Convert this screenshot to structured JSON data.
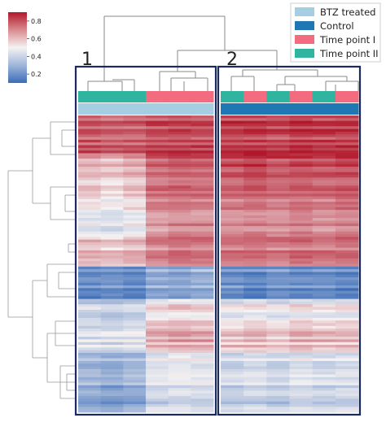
{
  "chart_data": {
    "type": "heatmap",
    "title": "",
    "colorbar": {
      "min": 0.1,
      "max": 0.9,
      "ticks": [
        "0.8",
        "0.6",
        "0.4",
        "0.2"
      ],
      "tick_values": [
        0.8,
        0.6,
        0.4,
        0.2
      ],
      "colormap": "blue-white-red",
      "low_color": "#3b6cb7",
      "mid_color": "#f5f2f2",
      "high_color": "#b2182b"
    },
    "legend": {
      "placement": "top-right",
      "entries": [
        {
          "label": "BTZ treated",
          "color": "#a6cee3"
        },
        {
          "label": "Control",
          "color": "#1f78b4"
        },
        {
          "label": "Time point I",
          "color": "#f26b7f"
        },
        {
          "label": "Time point II",
          "color": "#2fb4a0"
        }
      ]
    },
    "clusters": [
      {
        "label": "1",
        "columns": 6
      },
      {
        "label": "2",
        "columns": 6
      }
    ],
    "column_annotations": {
      "time_point": [
        "Time point II",
        "Time point II",
        "Time point II",
        "Time point I",
        "Time point I",
        "Time point I",
        "Time point II",
        "Time point I",
        "Time point II",
        "Time point I",
        "Time point II",
        "Time point I"
      ],
      "treatment": [
        "BTZ treated",
        "BTZ treated",
        "BTZ treated",
        "BTZ treated",
        "BTZ treated",
        "BTZ treated",
        "Control",
        "Control",
        "Control",
        "Control",
        "Control",
        "Control"
      ]
    },
    "row_blocks": [
      {
        "label_hint": "high-all",
        "rows": 14,
        "values": [
          0.78,
          0.76,
          0.77,
          0.8,
          0.81,
          0.8,
          0.82,
          0.83,
          0.81,
          0.84,
          0.82,
          0.83
        ]
      },
      {
        "label_hint": "high-c2",
        "rows": 10,
        "values": [
          0.62,
          0.6,
          0.63,
          0.76,
          0.78,
          0.77,
          0.8,
          0.82,
          0.79,
          0.81,
          0.8,
          0.82
        ]
      },
      {
        "label_hint": "mid",
        "rows": 12,
        "values": [
          0.55,
          0.52,
          0.56,
          0.72,
          0.74,
          0.73,
          0.74,
          0.76,
          0.73,
          0.75,
          0.74,
          0.76
        ]
      },
      {
        "label_hint": "light",
        "rows": 10,
        "values": [
          0.48,
          0.46,
          0.5,
          0.68,
          0.7,
          0.69,
          0.7,
          0.71,
          0.69,
          0.72,
          0.7,
          0.71
        ]
      },
      {
        "label_hint": "mid2",
        "rows": 10,
        "values": [
          0.6,
          0.58,
          0.61,
          0.7,
          0.72,
          0.71,
          0.72,
          0.73,
          0.71,
          0.74,
          0.72,
          0.73
        ]
      },
      {
        "label_hint": "blue",
        "rows": 12,
        "values": [
          0.2,
          0.22,
          0.19,
          0.3,
          0.28,
          0.31,
          0.22,
          0.2,
          0.23,
          0.21,
          0.22,
          0.2
        ]
      },
      {
        "label_hint": "white",
        "rows": 8,
        "values": [
          0.4,
          0.38,
          0.41,
          0.52,
          0.55,
          0.53,
          0.48,
          0.5,
          0.47,
          0.51,
          0.49,
          0.5
        ]
      },
      {
        "label_hint": "pinkish",
        "rows": 12,
        "values": [
          0.45,
          0.44,
          0.46,
          0.62,
          0.64,
          0.63,
          0.58,
          0.6,
          0.57,
          0.61,
          0.59,
          0.6
        ]
      },
      {
        "label_hint": "pale",
        "rows": 12,
        "values": [
          0.36,
          0.34,
          0.37,
          0.5,
          0.52,
          0.51,
          0.46,
          0.48,
          0.45,
          0.49,
          0.47,
          0.48
        ]
      },
      {
        "label_hint": "lowblue",
        "rows": 10,
        "values": [
          0.28,
          0.26,
          0.29,
          0.42,
          0.44,
          0.43,
          0.4,
          0.42,
          0.39,
          0.43,
          0.41,
          0.42
        ]
      }
    ]
  }
}
